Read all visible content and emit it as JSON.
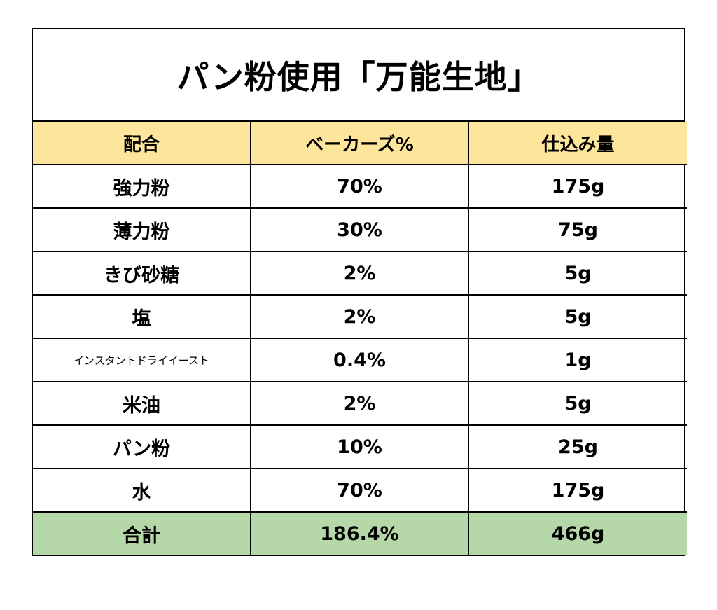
{
  "title": "パン粉使用「万能生地」",
  "headers": {
    "name": "配合",
    "bakers_percent": "ベーカーズ%",
    "amount": "仕込み量"
  },
  "rows": [
    {
      "name": "強力粉",
      "percent": "70%",
      "amount": "175g"
    },
    {
      "name": "薄力粉",
      "percent": "30%",
      "amount": "75g"
    },
    {
      "name": "きび砂糖",
      "percent": "2%",
      "amount": "5g"
    },
    {
      "name": "塩",
      "percent": "2%",
      "amount": "5g"
    },
    {
      "name": "インスタントドライイースト",
      "percent": "0.4%",
      "amount": "1g"
    },
    {
      "name": "米油",
      "percent": "2%",
      "amount": "5g"
    },
    {
      "name": "パン粉",
      "percent": "10%",
      "amount": "25g"
    },
    {
      "name": "水",
      "percent": "70%",
      "amount": "175g"
    }
  ],
  "total": {
    "name": "合計",
    "percent": "186.4%",
    "amount": "466g"
  },
  "colors": {
    "header_bg": "#fde59b",
    "total_bg": "#b6d7a8",
    "border": "#000000"
  }
}
